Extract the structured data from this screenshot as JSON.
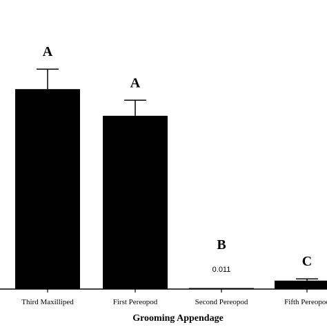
{
  "chart_data": {
    "type": "bar",
    "title": "",
    "xlabel": "Grooming Appendage",
    "ylabel": "",
    "ylim": [
      0,
      100
    ],
    "categories": [
      "Third Maxilliped",
      "First Pereopod",
      "Second Pereopod",
      "Fifth Pereopod"
    ],
    "values": [
      90,
      78,
      0.011,
      3.8
    ],
    "errors": [
      9,
      7,
      0,
      0.8
    ],
    "significance_letters": [
      "A",
      "A",
      "B",
      "C"
    ],
    "data_labels": [
      "",
      "",
      "0.011",
      ""
    ],
    "bar_color": "#000000",
    "grid": false
  }
}
